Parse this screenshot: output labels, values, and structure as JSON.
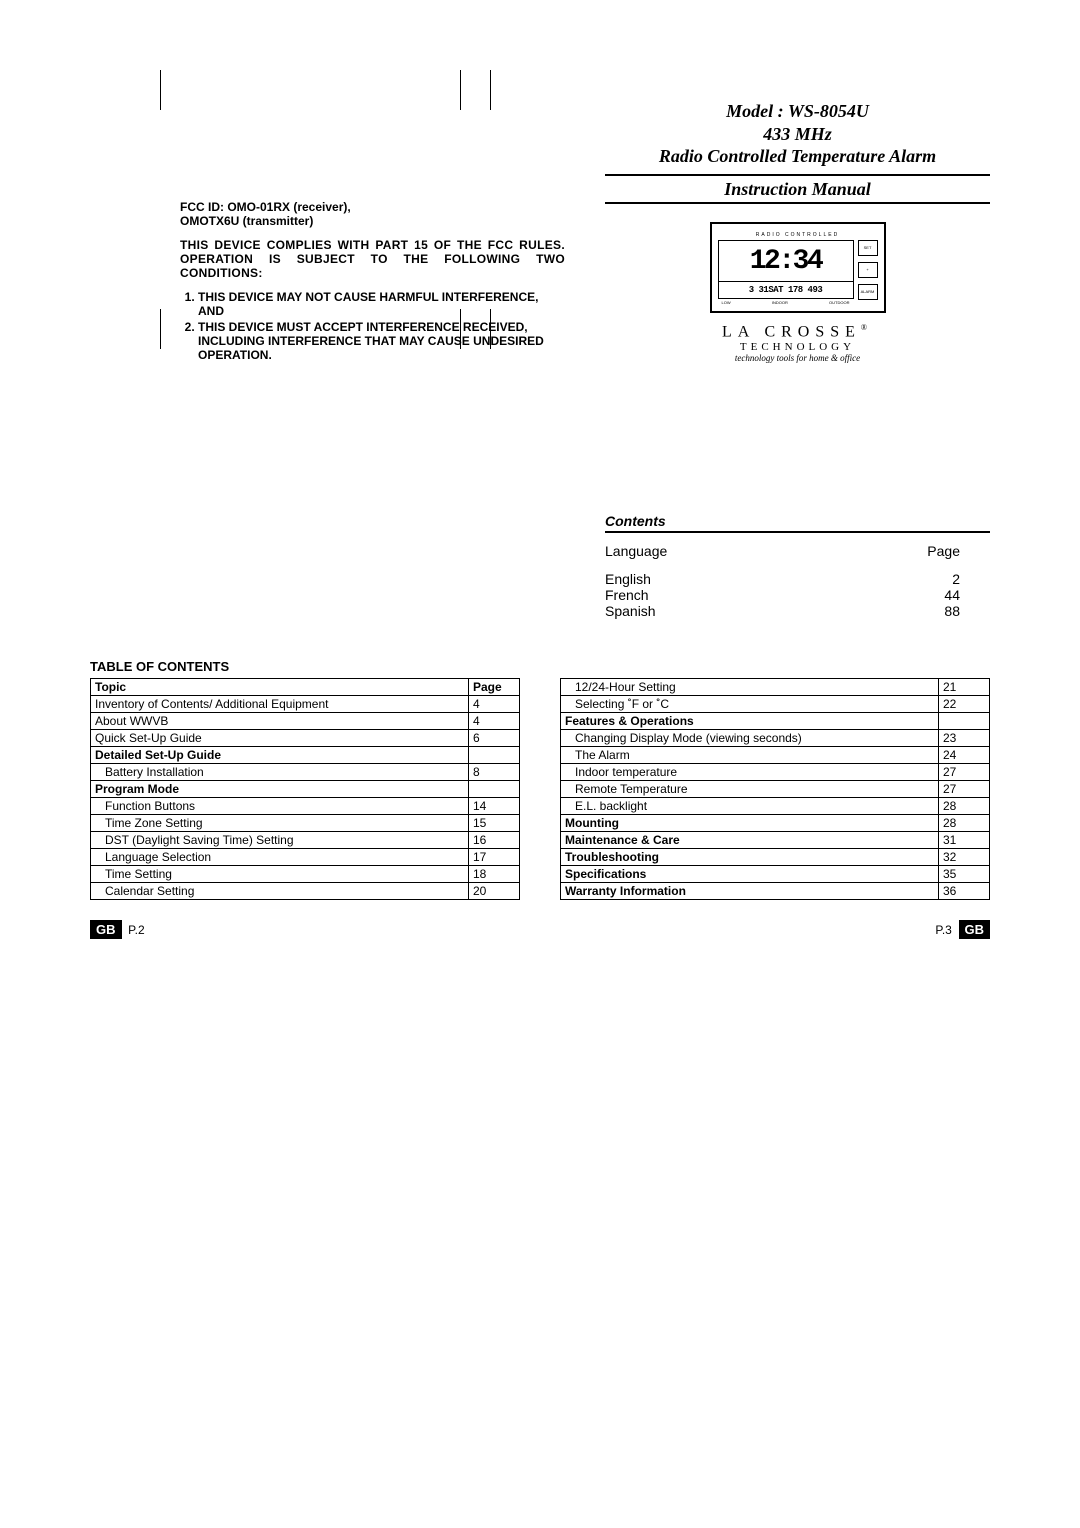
{
  "header": {
    "model_line": "Model : WS-8054U",
    "freq_line": "433 MHz",
    "desc_line": "Radio Controlled Temperature Alarm",
    "manual_line": "Instruction Manual"
  },
  "fcc": {
    "id_line1": "FCC ID: OMO-01RX (receiver),",
    "id_line2": "OMOTX6U (transmitter)",
    "rules_text": "THIS DEVICE COMPLIES WITH PART 15 OF THE FCC RULES. OPERATION IS SUBJECT TO THE FOLLOWING TWO CONDITIONS:",
    "cond1": "THIS DEVICE MAY NOT CAUSE HARMFUL INTERFERENCE, AND",
    "cond2": "THIS DEVICE MUST ACCEPT INTERFERENCE RECEIVED, INCLUDING INTERFERENCE THAT MAY CAUSE UNDESIRED OPERATION."
  },
  "device": {
    "radio_label": "RADIO CONTROLLED",
    "time": "12:34",
    "subline": "3 31SAT 178 493",
    "btn1": "SET",
    "btn2": "+",
    "btn3": "ALARM",
    "t1": "LOW",
    "t2": "INDOOR",
    "t3": "OUTDOOR"
  },
  "brand": {
    "main": "LA CROSSE",
    "reg": "®",
    "sub": "TECHNOLOGY",
    "tag": "technology tools for home & office"
  },
  "contents": {
    "title": "Contents",
    "lang_h": "Language",
    "page_h": "Page",
    "rows": [
      {
        "lang": "English",
        "page": "2"
      },
      {
        "lang": "French",
        "page": "44"
      },
      {
        "lang": "Spanish",
        "page": "88"
      }
    ]
  },
  "toc": {
    "title": "TABLE OF CONTENTS",
    "head_topic": "Topic",
    "head_page": "Page",
    "left": [
      {
        "t": "Inventory of Contents/ Additional Equipment",
        "p": "4",
        "bold": false,
        "indent": 0
      },
      {
        "t": "About WWVB",
        "p": "4",
        "bold": false,
        "indent": 0
      },
      {
        "t": "Quick Set-Up Guide",
        "p": "6",
        "bold": false,
        "indent": 0
      },
      {
        "t": "Detailed Set-Up Guide",
        "p": "",
        "bold": true,
        "indent": 0
      },
      {
        "t": "Battery Installation",
        "p": "8",
        "bold": false,
        "indent": 1
      },
      {
        "t": "Program Mode",
        "p": "",
        "bold": true,
        "indent": 0
      },
      {
        "t": "Function Buttons",
        "p": "14",
        "bold": false,
        "indent": 1
      },
      {
        "t": "Time Zone Setting",
        "p": "15",
        "bold": false,
        "indent": 1
      },
      {
        "t": "DST (Daylight Saving Time) Setting",
        "p": "16",
        "bold": false,
        "indent": 1
      },
      {
        "t": "Language Selection",
        "p": "17",
        "bold": false,
        "indent": 1
      },
      {
        "t": "Time Setting",
        "p": "18",
        "bold": false,
        "indent": 1
      },
      {
        "t": "Calendar Setting",
        "p": "20",
        "bold": false,
        "indent": 1
      }
    ],
    "right": [
      {
        "t": "12/24-Hour Setting",
        "p": "21",
        "bold": false,
        "indent": 1
      },
      {
        "t": "Selecting ˚F or ˚C",
        "p": "22",
        "bold": false,
        "indent": 1
      },
      {
        "t": "Features & Operations",
        "p": "",
        "bold": true,
        "indent": 0
      },
      {
        "t": "Changing Display Mode (viewing seconds)",
        "p": "23",
        "bold": false,
        "indent": 1
      },
      {
        "t": "The Alarm",
        "p": "24",
        "bold": false,
        "indent": 1
      },
      {
        "t": "Indoor temperature",
        "p": "27",
        "bold": false,
        "indent": 1
      },
      {
        "t": "Remote Temperature",
        "p": "27",
        "bold": false,
        "indent": 1
      },
      {
        "t": "E.L. backlight",
        "p": "28",
        "bold": false,
        "indent": 1
      },
      {
        "t": "Mounting",
        "p": "28",
        "bold": true,
        "indent": 0
      },
      {
        "t": "Maintenance & Care",
        "p": "31",
        "bold": true,
        "indent": 0
      },
      {
        "t": "Troubleshooting",
        "p": "32",
        "bold": true,
        "indent": 0
      },
      {
        "t": "Specifications",
        "p": "35",
        "bold": true,
        "indent": 0
      },
      {
        "t": "Warranty Information",
        "p": "36",
        "bold": true,
        "indent": 0
      }
    ]
  },
  "footer": {
    "gb": "GB",
    "p2": "P.2",
    "p3": "P.3"
  }
}
